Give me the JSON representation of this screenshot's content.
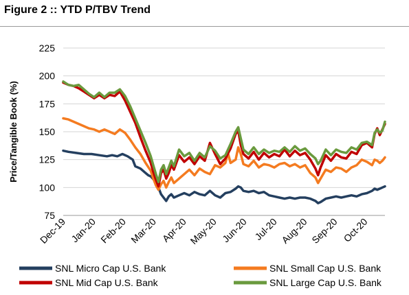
{
  "figure": {
    "title": "Figure 2 :: YTD P/TBV Trend"
  },
  "chart_data": {
    "type": "line",
    "title": "",
    "xlabel": "",
    "ylabel": "Price/Tangible Book (%)",
    "ylim": [
      75,
      225
    ],
    "yticks": [
      75,
      100,
      125,
      150,
      175,
      200,
      225
    ],
    "xticks": [
      "Dec-19",
      "Jan-20",
      "Feb-20",
      "Mar-20",
      "Apr-20",
      "May-20",
      "Jun-20",
      "Jul-20",
      "Aug-20",
      "Sep-20",
      "Oct-20"
    ],
    "grid": "horizontal",
    "legend": "bottom",
    "series": [
      {
        "name": "SNL Micro Cap U.S. Bank",
        "color": "#243f5f",
        "points": [
          [
            0,
            133
          ],
          [
            2,
            132
          ],
          [
            5,
            131
          ],
          [
            8,
            130
          ],
          [
            11,
            130
          ],
          [
            14,
            129
          ],
          [
            17,
            128
          ],
          [
            19,
            129
          ],
          [
            21,
            128
          ],
          [
            23,
            130
          ],
          [
            25,
            128
          ],
          [
            27,
            125
          ],
          [
            28,
            119
          ],
          [
            30,
            117
          ],
          [
            32,
            113
          ],
          [
            33,
            111
          ],
          [
            34,
            110
          ],
          [
            36,
            105
          ],
          [
            37,
            100
          ],
          [
            38,
            94
          ],
          [
            39,
            91
          ],
          [
            40,
            88
          ],
          [
            41,
            92
          ],
          [
            42,
            94
          ],
          [
            43,
            91
          ],
          [
            45,
            93
          ],
          [
            47,
            95
          ],
          [
            49,
            93
          ],
          [
            51,
            96
          ],
          [
            53,
            94
          ],
          [
            55,
            93
          ],
          [
            57,
            97
          ],
          [
            59,
            93
          ],
          [
            61,
            91
          ],
          [
            63,
            95
          ],
          [
            65,
            96
          ],
          [
            67,
            99
          ],
          [
            68,
            101
          ],
          [
            69,
            100
          ],
          [
            70,
            97
          ],
          [
            72,
            96
          ],
          [
            74,
            97
          ],
          [
            76,
            95
          ],
          [
            78,
            96
          ],
          [
            80,
            93
          ],
          [
            82,
            92
          ],
          [
            84,
            91
          ],
          [
            86,
            90
          ],
          [
            88,
            91
          ],
          [
            90,
            90
          ],
          [
            92,
            91
          ],
          [
            94,
            91
          ],
          [
            96,
            90
          ],
          [
            98,
            88
          ],
          [
            99,
            86
          ],
          [
            100,
            87
          ],
          [
            102,
            90
          ],
          [
            104,
            91
          ],
          [
            106,
            92
          ],
          [
            108,
            91
          ],
          [
            110,
            92
          ],
          [
            112,
            93
          ],
          [
            114,
            92
          ],
          [
            116,
            94
          ],
          [
            118,
            95
          ],
          [
            120,
            97
          ],
          [
            121,
            99
          ],
          [
            122,
            98
          ],
          [
            123,
            99
          ],
          [
            124,
            100
          ],
          [
            125,
            101
          ]
        ]
      },
      {
        "name": "SNL Small Cap U.S. Bank",
        "color": "#f47b20",
        "points": [
          [
            0,
            162
          ],
          [
            2,
            161
          ],
          [
            4,
            159
          ],
          [
            6,
            157
          ],
          [
            8,
            155
          ],
          [
            10,
            153
          ],
          [
            12,
            152
          ],
          [
            14,
            150
          ],
          [
            16,
            152
          ],
          [
            18,
            150
          ],
          [
            20,
            148
          ],
          [
            22,
            152
          ],
          [
            24,
            149
          ],
          [
            26,
            143
          ],
          [
            28,
            136
          ],
          [
            30,
            130
          ],
          [
            32,
            122
          ],
          [
            34,
            115
          ],
          [
            35,
            108
          ],
          [
            36,
            102
          ],
          [
            37,
            98
          ],
          [
            38,
            103
          ],
          [
            39,
            106
          ],
          [
            40,
            100
          ],
          [
            41,
            105
          ],
          [
            42,
            109
          ],
          [
            43,
            104
          ],
          [
            45,
            108
          ],
          [
            47,
            112
          ],
          [
            49,
            116
          ],
          [
            51,
            111
          ],
          [
            53,
            117
          ],
          [
            55,
            114
          ],
          [
            57,
            112
          ],
          [
            59,
            120
          ],
          [
            61,
            118
          ],
          [
            63,
            122
          ],
          [
            64,
            131
          ],
          [
            65,
            122
          ],
          [
            67,
            125
          ],
          [
            68,
            136
          ],
          [
            69,
            130
          ],
          [
            70,
            121
          ],
          [
            72,
            119
          ],
          [
            74,
            124
          ],
          [
            76,
            118
          ],
          [
            78,
            121
          ],
          [
            80,
            120
          ],
          [
            82,
            118
          ],
          [
            84,
            121
          ],
          [
            86,
            122
          ],
          [
            88,
            119
          ],
          [
            90,
            121
          ],
          [
            92,
            118
          ],
          [
            94,
            120
          ],
          [
            96,
            113
          ],
          [
            98,
            109
          ],
          [
            99,
            104
          ],
          [
            100,
            108
          ],
          [
            102,
            116
          ],
          [
            104,
            114
          ],
          [
            106,
            118
          ],
          [
            108,
            117
          ],
          [
            110,
            114
          ],
          [
            112,
            118
          ],
          [
            114,
            120
          ],
          [
            116,
            125
          ],
          [
            118,
            123
          ],
          [
            120,
            120
          ],
          [
            121,
            125
          ],
          [
            122,
            124
          ],
          [
            123,
            122
          ],
          [
            124,
            124
          ],
          [
            125,
            127
          ]
        ]
      },
      {
        "name": "SNL Mid Cap U.S. Bank",
        "color": "#c00000",
        "points": [
          [
            0,
            194
          ],
          [
            2,
            192
          ],
          [
            4,
            191
          ],
          [
            6,
            189
          ],
          [
            8,
            186
          ],
          [
            10,
            183
          ],
          [
            12,
            180
          ],
          [
            14,
            183
          ],
          [
            16,
            180
          ],
          [
            18,
            183
          ],
          [
            20,
            182
          ],
          [
            22,
            186
          ],
          [
            24,
            178
          ],
          [
            26,
            168
          ],
          [
            28,
            158
          ],
          [
            30,
            145
          ],
          [
            32,
            133
          ],
          [
            34,
            122
          ],
          [
            35,
            114
          ],
          [
            36,
            107
          ],
          [
            37,
            101
          ],
          [
            38,
            113
          ],
          [
            39,
            116
          ],
          [
            40,
            108
          ],
          [
            41,
            113
          ],
          [
            42,
            120
          ],
          [
            43,
            116
          ],
          [
            45,
            129
          ],
          [
            47,
            123
          ],
          [
            49,
            127
          ],
          [
            51,
            121
          ],
          [
            53,
            128
          ],
          [
            55,
            124
          ],
          [
            57,
            140
          ],
          [
            59,
            130
          ],
          [
            61,
            121
          ],
          [
            63,
            126
          ],
          [
            65,
            135
          ],
          [
            67,
            148
          ],
          [
            68,
            151
          ],
          [
            69,
            138
          ],
          [
            70,
            130
          ],
          [
            72,
            126
          ],
          [
            74,
            132
          ],
          [
            76,
            125
          ],
          [
            78,
            131
          ],
          [
            80,
            127
          ],
          [
            82,
            130
          ],
          [
            84,
            128
          ],
          [
            86,
            134
          ],
          [
            88,
            128
          ],
          [
            90,
            133
          ],
          [
            92,
            129
          ],
          [
            94,
            131
          ],
          [
            96,
            125
          ],
          [
            98,
            117
          ],
          [
            99,
            111
          ],
          [
            100,
            118
          ],
          [
            102,
            129
          ],
          [
            104,
            124
          ],
          [
            106,
            130
          ],
          [
            108,
            127
          ],
          [
            110,
            126
          ],
          [
            112,
            132
          ],
          [
            114,
            130
          ],
          [
            116,
            138
          ],
          [
            118,
            140
          ],
          [
            120,
            136
          ],
          [
            121,
            148
          ],
          [
            122,
            153
          ],
          [
            123,
            147
          ],
          [
            124,
            152
          ],
          [
            125,
            157
          ]
        ]
      },
      {
        "name": "SNL Large Cap U.S. Bank",
        "color": "#6a9a3e",
        "points": [
          [
            0,
            195
          ],
          [
            2,
            192
          ],
          [
            4,
            191
          ],
          [
            6,
            192
          ],
          [
            8,
            188
          ],
          [
            10,
            184
          ],
          [
            12,
            181
          ],
          [
            14,
            185
          ],
          [
            16,
            181
          ],
          [
            18,
            185
          ],
          [
            20,
            185
          ],
          [
            22,
            188
          ],
          [
            24,
            182
          ],
          [
            26,
            173
          ],
          [
            28,
            162
          ],
          [
            30,
            151
          ],
          [
            32,
            140
          ],
          [
            34,
            128
          ],
          [
            35,
            120
          ],
          [
            36,
            112
          ],
          [
            37,
            105
          ],
          [
            38,
            116
          ],
          [
            39,
            120
          ],
          [
            40,
            112
          ],
          [
            41,
            118
          ],
          [
            42,
            124
          ],
          [
            43,
            119
          ],
          [
            45,
            134
          ],
          [
            47,
            128
          ],
          [
            49,
            131
          ],
          [
            51,
            124
          ],
          [
            53,
            131
          ],
          [
            55,
            127
          ],
          [
            57,
            137
          ],
          [
            59,
            133
          ],
          [
            61,
            126
          ],
          [
            63,
            129
          ],
          [
            65,
            139
          ],
          [
            67,
            150
          ],
          [
            68,
            154
          ],
          [
            69,
            144
          ],
          [
            70,
            134
          ],
          [
            72,
            130
          ],
          [
            74,
            136
          ],
          [
            76,
            130
          ],
          [
            78,
            134
          ],
          [
            80,
            131
          ],
          [
            82,
            133
          ],
          [
            84,
            132
          ],
          [
            86,
            136
          ],
          [
            88,
            132
          ],
          [
            90,
            137
          ],
          [
            92,
            133
          ],
          [
            94,
            135
          ],
          [
            96,
            130
          ],
          [
            98,
            126
          ],
          [
            99,
            121
          ],
          [
            100,
            124
          ],
          [
            102,
            134
          ],
          [
            104,
            129
          ],
          [
            106,
            134
          ],
          [
            108,
            132
          ],
          [
            110,
            131
          ],
          [
            112,
            136
          ],
          [
            114,
            134
          ],
          [
            116,
            140
          ],
          [
            118,
            141
          ],
          [
            120,
            138
          ],
          [
            121,
            149
          ],
          [
            122,
            152
          ],
          [
            123,
            149
          ],
          [
            124,
            151
          ],
          [
            125,
            159
          ]
        ]
      }
    ]
  }
}
